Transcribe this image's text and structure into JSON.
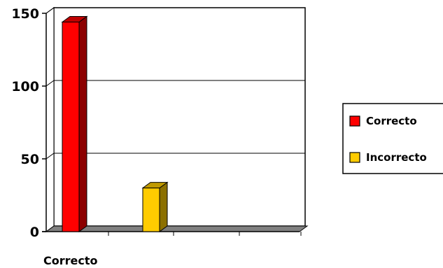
{
  "chart_data": {
    "type": "bar",
    "style": "3d-column",
    "categories": [
      "Correcto"
    ],
    "series": [
      {
        "name": "Correcto",
        "color": "#ff0000",
        "values": [
          144
        ]
      },
      {
        "name": "Incorrecto",
        "color": "#ffcc00",
        "values": [
          30
        ]
      }
    ],
    "ylim": [
      0,
      150
    ],
    "yticks": [
      0,
      50,
      100,
      150
    ],
    "grid": true,
    "legend": "right"
  }
}
